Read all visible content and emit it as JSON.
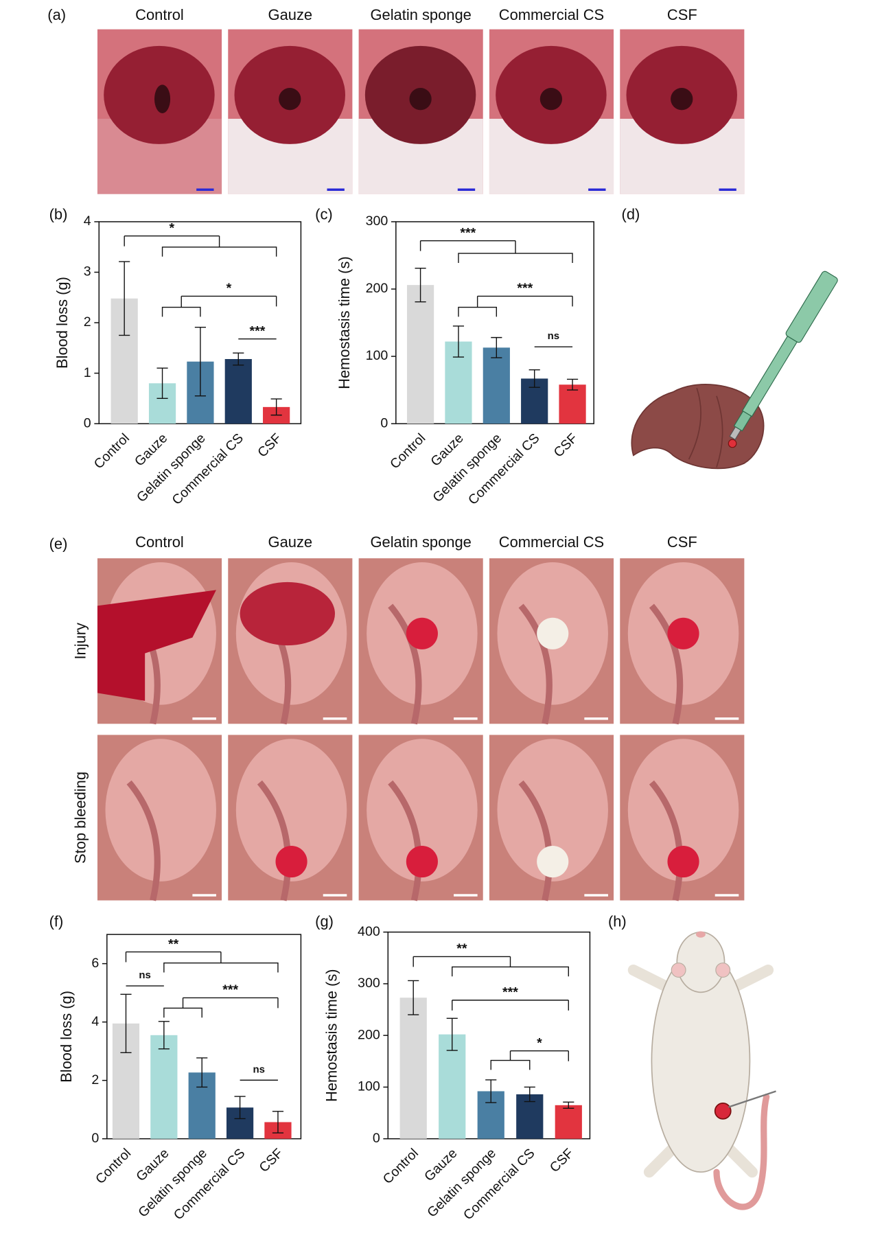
{
  "figure": {
    "panel_labels": [
      "(a)",
      "(b)",
      "(c)",
      "(d)",
      "(e)",
      "(f)",
      "(g)",
      "(h)"
    ],
    "photos_a": {
      "columns": [
        "Control",
        "Gauze",
        "Gelatin sponge",
        "Commercial CS",
        "CSF"
      ]
    },
    "photos_e": {
      "columns": [
        "Control",
        "Gauze",
        "Gelatin sponge",
        "Commercial CS",
        "CSF"
      ],
      "rows": [
        "Injury",
        "Stop bleeding"
      ]
    }
  },
  "chart_data": [
    {
      "type": "bar",
      "y_label": "Blood loss (g)",
      "categories": [
        "Control",
        "Gauze",
        "Gelatin sponge",
        "Commercial CS",
        "CSF"
      ],
      "values": [
        2.48,
        0.8,
        1.23,
        1.28,
        0.33
      ],
      "errors": [
        0.73,
        0.3,
        0.68,
        0.12,
        0.16
      ],
      "colors": [
        "#d9d9d9",
        "#a9dcd9",
        "#4a7fa3",
        "#1f3a5f",
        "#e2343f"
      ],
      "ylim": [
        0,
        4
      ],
      "yticks": [
        0,
        1,
        2,
        3,
        4
      ],
      "annotations": [
        "*",
        "*",
        "***"
      ]
    },
    {
      "type": "bar",
      "y_label": "Hemostasis time (s)",
      "categories": [
        "Control",
        "Gauze",
        "Gelatin sponge",
        "Commercial CS",
        "CSF"
      ],
      "values": [
        206,
        122,
        113,
        67,
        58
      ],
      "errors": [
        25,
        23,
        15,
        13,
        8
      ],
      "colors": [
        "#d9d9d9",
        "#a9dcd9",
        "#4a7fa3",
        "#1f3a5f",
        "#e2343f"
      ],
      "ylim": [
        0,
        300
      ],
      "yticks": [
        0,
        100,
        200,
        300
      ],
      "annotations": [
        "***",
        "***",
        "ns"
      ]
    },
    {
      "type": "bar",
      "y_label": "Blood loss (g)",
      "categories": [
        "Control",
        "Gauze",
        "Gelatin sponge",
        "Commercial CS",
        "CSF"
      ],
      "values": [
        3.95,
        3.55,
        2.27,
        1.07,
        0.57
      ],
      "errors": [
        1.0,
        0.47,
        0.5,
        0.38,
        0.37
      ],
      "colors": [
        "#d9d9d9",
        "#a9dcd9",
        "#4a7fa3",
        "#1f3a5f",
        "#e2343f"
      ],
      "ylim": [
        0,
        7
      ],
      "yticks": [
        0,
        2,
        4,
        6
      ],
      "annotations": [
        "**",
        "ns",
        "***",
        "ns"
      ]
    },
    {
      "type": "bar",
      "y_label": "Hemostasis time (s)",
      "categories": [
        "Control",
        "Gauze",
        "Gelatin sponge",
        "Commercial CS",
        "CSF"
      ],
      "values": [
        273,
        202,
        92,
        86,
        65
      ],
      "errors": [
        33,
        31,
        22,
        14,
        6
      ],
      "colors": [
        "#d9d9d9",
        "#a9dcd9",
        "#4a7fa3",
        "#1f3a5f",
        "#e2343f"
      ],
      "ylim": [
        0,
        400
      ],
      "yticks": [
        0,
        100,
        200,
        300,
        400
      ],
      "annotations": [
        "**",
        "***",
        "*"
      ]
    }
  ]
}
